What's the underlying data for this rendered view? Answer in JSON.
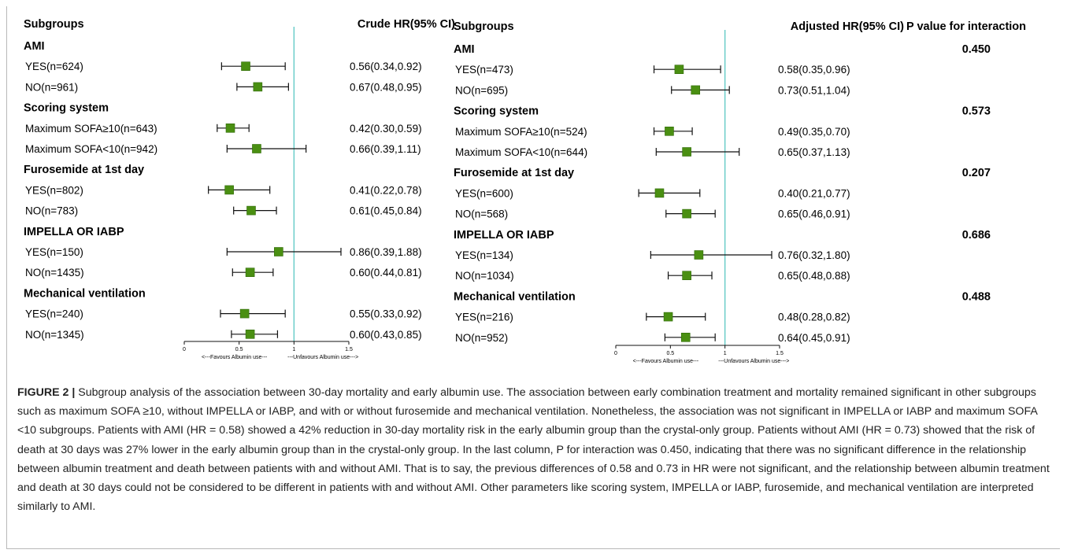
{
  "colors": {
    "marker": "#4a8f12",
    "marker_stroke": "#2f6a08",
    "ref_line": "#5bc8c4",
    "ci": "#111111"
  },
  "chart_data": [
    {
      "type": "forest",
      "title": "",
      "col_subgroups": "Subgroups",
      "col_estimate": "Crude HR(95% CI)",
      "xlim": [
        0,
        1.5
      ],
      "ticks": [
        0,
        0.5,
        1,
        1.5
      ],
      "tick_labels": [
        "0",
        "0.5",
        "1",
        "1.5"
      ],
      "reference": 1,
      "favours_left": "<---Favours Albumin use---",
      "favours_right": "---Unfavours Albumin use--->",
      "rows": [
        {
          "kind": "header",
          "label": "AMI"
        },
        {
          "kind": "item",
          "label": "YES(n=624)",
          "hr": 0.56,
          "lo": 0.34,
          "hi": 0.92,
          "text": "0.56(0.34,0.92)"
        },
        {
          "kind": "item",
          "label": "NO(n=961)",
          "hr": 0.67,
          "lo": 0.48,
          "hi": 0.95,
          "text": "0.67(0.48,0.95)"
        },
        {
          "kind": "header",
          "label": "Scoring system"
        },
        {
          "kind": "item",
          "label": "Maximum SOFA≥10(n=643)",
          "hr": 0.42,
          "lo": 0.3,
          "hi": 0.59,
          "text": "0.42(0.30,0.59)"
        },
        {
          "kind": "item",
          "label": "Maximum SOFA<10(n=942)",
          "hr": 0.66,
          "lo": 0.39,
          "hi": 1.11,
          "text": "0.66(0.39,1.11)"
        },
        {
          "kind": "header",
          "label": "Furosemide at 1st day"
        },
        {
          "kind": "item",
          "label": "YES(n=802)",
          "hr": 0.41,
          "lo": 0.22,
          "hi": 0.78,
          "text": "0.41(0.22,0.78)"
        },
        {
          "kind": "item",
          "label": "NO(n=783)",
          "hr": 0.61,
          "lo": 0.45,
          "hi": 0.84,
          "text": "0.61(0.45,0.84)"
        },
        {
          "kind": "header",
          "label": "IMPELLA OR IABP"
        },
        {
          "kind": "item",
          "label": "YES(n=150)",
          "hr": 0.86,
          "lo": 0.39,
          "hi": 1.88,
          "text": "0.86(0.39,1.88)"
        },
        {
          "kind": "item",
          "label": "NO(n=1435)",
          "hr": 0.6,
          "lo": 0.44,
          "hi": 0.81,
          "text": "0.60(0.44,0.81)"
        },
        {
          "kind": "header",
          "label": "Mechanical ventilation"
        },
        {
          "kind": "item",
          "label": "YES(n=240)",
          "hr": 0.55,
          "lo": 0.33,
          "hi": 0.92,
          "text": "0.55(0.33,0.92)"
        },
        {
          "kind": "item",
          "label": "NO(n=1345)",
          "hr": 0.6,
          "lo": 0.43,
          "hi": 0.85,
          "text": "0.60(0.43,0.85)"
        }
      ]
    },
    {
      "type": "forest",
      "title": "",
      "col_subgroups": "Subgroups",
      "col_estimate": "Adjusted HR(95% CI)",
      "col_interaction": "P value for interaction",
      "xlim": [
        0,
        1.5
      ],
      "ticks": [
        0,
        0.5,
        1,
        1.5
      ],
      "tick_labels": [
        "0",
        "0.5",
        "1",
        "1.5"
      ],
      "reference": 1,
      "favours_left": "<---Favours Albumin use---",
      "favours_right": "---Unfavours Albumin use--->",
      "rows": [
        {
          "kind": "header",
          "label": "AMI",
          "p": "0.450"
        },
        {
          "kind": "item",
          "label": "YES(n=473)",
          "hr": 0.58,
          "lo": 0.35,
          "hi": 0.96,
          "text": "0.58(0.35,0.96)"
        },
        {
          "kind": "item",
          "label": "NO(n=695)",
          "hr": 0.73,
          "lo": 0.51,
          "hi": 1.04,
          "text": "0.73(0.51,1.04)"
        },
        {
          "kind": "header",
          "label": "Scoring system",
          "p": "0.573"
        },
        {
          "kind": "item",
          "label": "Maximum SOFA≥10(n=524)",
          "hr": 0.49,
          "lo": 0.35,
          "hi": 0.7,
          "text": "0.49(0.35,0.70)"
        },
        {
          "kind": "item",
          "label": "Maximum SOFA<10(n=644)",
          "hr": 0.65,
          "lo": 0.37,
          "hi": 1.13,
          "text": "0.65(0.37,1.13)"
        },
        {
          "kind": "header",
          "label": "Furosemide at 1st day",
          "p": "0.207"
        },
        {
          "kind": "item",
          "label": "YES(n=600)",
          "hr": 0.4,
          "lo": 0.21,
          "hi": 0.77,
          "text": "0.40(0.21,0.77)"
        },
        {
          "kind": "item",
          "label": "NO(n=568)",
          "hr": 0.65,
          "lo": 0.46,
          "hi": 0.91,
          "text": "0.65(0.46,0.91)"
        },
        {
          "kind": "header",
          "label": "IMPELLA OR IABP",
          "p": "0.686"
        },
        {
          "kind": "item",
          "label": "YES(n=134)",
          "hr": 0.76,
          "lo": 0.32,
          "hi": 1.8,
          "text": "0.76(0.32,1.80)"
        },
        {
          "kind": "item",
          "label": "NO(n=1034)",
          "hr": 0.65,
          "lo": 0.48,
          "hi": 0.88,
          "text": "0.65(0.48,0.88)"
        },
        {
          "kind": "header",
          "label": "Mechanical ventilation",
          "p": "0.488"
        },
        {
          "kind": "item",
          "label": "YES(n=216)",
          "hr": 0.48,
          "lo": 0.28,
          "hi": 0.82,
          "text": "0.48(0.28,0.82)"
        },
        {
          "kind": "item",
          "label": "NO(n=952)",
          "hr": 0.64,
          "lo": 0.45,
          "hi": 0.91,
          "text": "0.64(0.45,0.91)"
        }
      ]
    }
  ],
  "caption": {
    "label": "FIGURE 2 |",
    "text": "Subgroup analysis of the association between 30-day mortality and early albumin use. The association between early combination treatment and mortality remained significant in other subgroups such as maximum SOFA ≥10, without IMPELLA or IABP, and with or without furosemide and mechanical ventilation. Nonetheless, the association was not significant in IMPELLA or IABP and maximum SOFA <10 subgroups. Patients with AMI (HR = 0.58) showed a 42% reduction in 30-day mortality risk in the early albumin group than the crystal-only group. Patients without AMI (HR = 0.73) showed that the risk of death at 30 days was 27% lower in the early albumin group than in the crystal-only group. In the last column, P for interaction was 0.450, indicating that there was no significant difference in the relationship between albumin treatment and death between patients with and without AMI. That is to say, the previous differences of 0.58 and 0.73 in HR were not significant, and the relationship between albumin treatment and death at 30 days could not be considered to be different in patients with and without AMI. Other parameters like scoring system, IMPELLA or IABP, furosemide, and mechanical ventilation are interpreted similarly to AMI."
  }
}
